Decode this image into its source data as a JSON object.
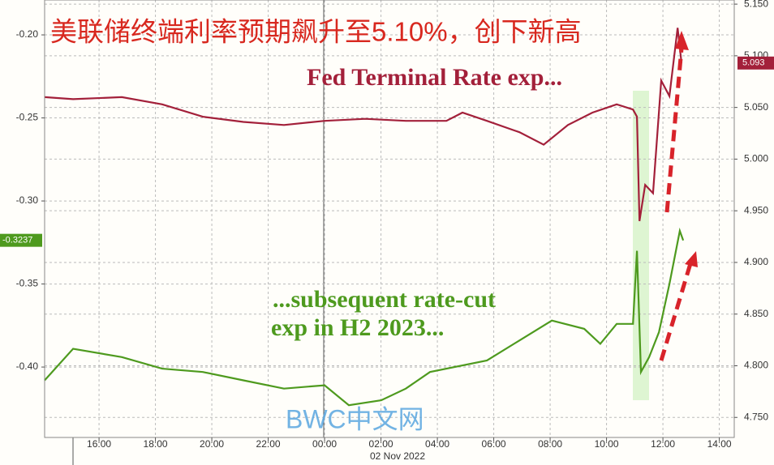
{
  "chart_data": {
    "type": "line",
    "title": "美联储终端利率预期飙升至5.10%，创下新高",
    "annotations": [
      "Fed Terminal Rate exp...",
      "...subsequent rate-cut",
      "exp in H2 2023..."
    ],
    "watermark": "BWC中文网",
    "x_date_label": "02 Nov 2022",
    "xlim": [
      14.07,
      38.53
    ],
    "xticks": [
      {
        "value": 16,
        "label": "16:00"
      },
      {
        "value": 18,
        "label": "18:00"
      },
      {
        "value": 20,
        "label": "20:00"
      },
      {
        "value": 22,
        "label": "22:00"
      },
      {
        "value": 24,
        "label": "00:00"
      },
      {
        "value": 26,
        "label": "02:00"
      },
      {
        "value": 28,
        "label": "04:00"
      },
      {
        "value": 30,
        "label": "06:00"
      },
      {
        "value": 32,
        "label": "08:00"
      },
      {
        "value": 34,
        "label": "10:00"
      },
      {
        "value": 36,
        "label": "12:00"
      },
      {
        "value": 38,
        "label": "14:00"
      }
    ],
    "ylim": [
      -0.4424,
      -0.179
    ],
    "yticks": [
      {
        "value": -0.2,
        "label": "-0.20"
      },
      -0.25,
      {
        "value": -0.3,
        "label": "-0.30"
      },
      -0.35,
      {
        "value": -0.4,
        "label": "-0.40"
      }
    ],
    "y2lim": [
      4.7306,
      5.154
    ],
    "y2ticks": [
      {
        "value": 5.15,
        "label": "5.150"
      },
      {
        "value": 5.1,
        "label": "5.100"
      },
      {
        "value": 5.05,
        "label": "5.050"
      },
      {
        "value": 5.0,
        "label": "5.000"
      },
      {
        "value": 4.95,
        "label": "4.950"
      },
      {
        "value": 4.9,
        "label": "4.900"
      },
      {
        "value": 4.85,
        "label": "4.850"
      },
      {
        "value": 4.8,
        "label": "4.800"
      },
      {
        "value": 4.75,
        "label": "4.750"
      }
    ],
    "grid": true,
    "series": [
      {
        "color": "#a3203a",
        "axis": "y2",
        "x": [
          14.07,
          15.08,
          16.81,
          18.24,
          19.68,
          21.12,
          22.56,
          24.0,
          25.44,
          26.88,
          28.32,
          28.89,
          29.76,
          30.91,
          31.77,
          32.63,
          33.5,
          34.36,
          34.94,
          35.08,
          35.17,
          35.37,
          35.65,
          35.94,
          36.23,
          36.52,
          36.66
        ],
        "values": [
          5.06,
          5.058,
          5.06,
          5.053,
          5.041,
          5.036,
          5.033,
          5.037,
          5.039,
          5.037,
          5.037,
          5.045,
          5.037,
          5.026,
          5.014,
          5.033,
          5.045,
          5.053,
          5.048,
          5.041,
          4.94,
          4.975,
          4.967,
          5.076,
          5.061,
          5.127,
          5.093
        ]
      },
      {
        "color": "#4e9a1e",
        "axis": "y",
        "x": [
          14.07,
          15.08,
          16.81,
          18.24,
          19.68,
          21.12,
          22.56,
          24.0,
          24.86,
          26.01,
          26.88,
          27.74,
          29.76,
          30.91,
          32.06,
          33.21,
          33.78,
          34.36,
          34.94,
          35.08,
          35.22,
          35.51,
          35.86,
          36.23,
          36.6,
          36.72
        ],
        "values": [
          -0.408,
          -0.389,
          -0.394,
          -0.401,
          -0.403,
          -0.408,
          -0.413,
          -0.411,
          -0.423,
          -0.42,
          -0.413,
          -0.403,
          -0.396,
          -0.384,
          -0.372,
          -0.377,
          -0.386,
          -0.374,
          -0.374,
          -0.33,
          -0.403,
          -0.394,
          -0.379,
          -0.35,
          -0.318,
          -0.3237
        ]
      }
    ]
  }
}
